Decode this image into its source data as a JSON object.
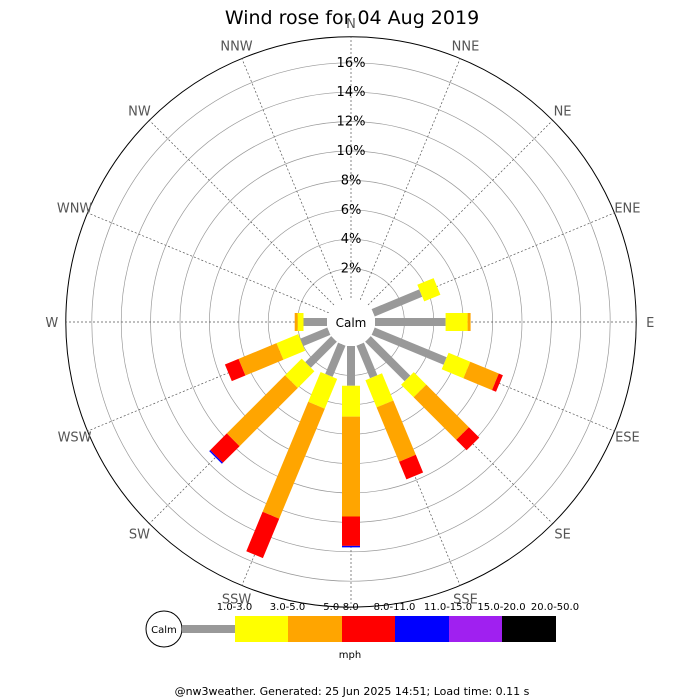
{
  "chart_data": {
    "type": "wind-rose",
    "title": "Wind rose for 04 Aug 2019",
    "center_label": "Calm",
    "directions": [
      "N",
      "NNE",
      "NE",
      "ENE",
      "E",
      "ESE",
      "SE",
      "SSE",
      "S",
      "SSW",
      "SW",
      "WSW",
      "W",
      "WNW",
      "NW",
      "NNW"
    ],
    "radial_ticks": [
      2,
      4,
      6,
      8,
      10,
      12,
      14,
      16
    ],
    "radial_tick_labels": [
      "2%",
      "4%",
      "6%",
      "8%",
      "10%",
      "12%",
      "14%",
      "16%"
    ],
    "rmax": 16,
    "bins": [
      {
        "label": "1.0-3.0",
        "color": "#999999"
      },
      {
        "label": "3.0-5.0",
        "color": "#ffff00"
      },
      {
        "label": "5.0-8.0",
        "color": "#ffa500"
      },
      {
        "label": "8.0-11.0",
        "color": "#ff0000"
      },
      {
        "label": "11.0-15.0",
        "color": "#0000ff"
      },
      {
        "label": "15.0-20.0",
        "color": "#a020f0"
      },
      {
        "label": "20.0-50.0",
        "color": "#000000"
      }
    ],
    "units": "mph",
    "cumulative_percent": [
      [
        0,
        0,
        0,
        0,
        0,
        0,
        0
      ],
      [
        0,
        0,
        0,
        0,
        0,
        0,
        0
      ],
      [
        0,
        0,
        0,
        0,
        0,
        0,
        0
      ],
      [
        3.5,
        4.7,
        4.7,
        4.7,
        4.7,
        4.7,
        4.7
      ],
      [
        4.8,
        6.3,
        6.5,
        6.5,
        6.5,
        6.5,
        6.5
      ],
      [
        5.3,
        6.9,
        9.0,
        9.3,
        9.3,
        9.3,
        9.3
      ],
      [
        3.8,
        5.0,
        9.1,
        10.1,
        10.1,
        10.1,
        10.1
      ],
      [
        2.4,
        4.4,
        8.4,
        9.7,
        9.7,
        9.7,
        9.7
      ],
      [
        2.7,
        4.8,
        11.6,
        13.6,
        13.7,
        13.7,
        13.7
      ],
      [
        2.3,
        4.5,
        12.6,
        15.5,
        15.5,
        15.5,
        15.5
      ],
      [
        2.5,
        4.1,
        9.7,
        11.3,
        11.4,
        11.4,
        11.4
      ],
      [
        2.0,
        3.6,
        6.4,
        7.4,
        7.4,
        7.4,
        7.4
      ],
      [
        1.6,
        2.0,
        2.2,
        2.2,
        2.2,
        2.2,
        2.2
      ],
      [
        0,
        0,
        0,
        0,
        0,
        0,
        0
      ],
      [
        0,
        0,
        0,
        0,
        0,
        0,
        0
      ],
      [
        0,
        0,
        0,
        0,
        0,
        0,
        0
      ]
    ]
  },
  "footer": "@nw3weather. Generated: 25 Jun 2025 14:51; Load time: 0.11 s"
}
